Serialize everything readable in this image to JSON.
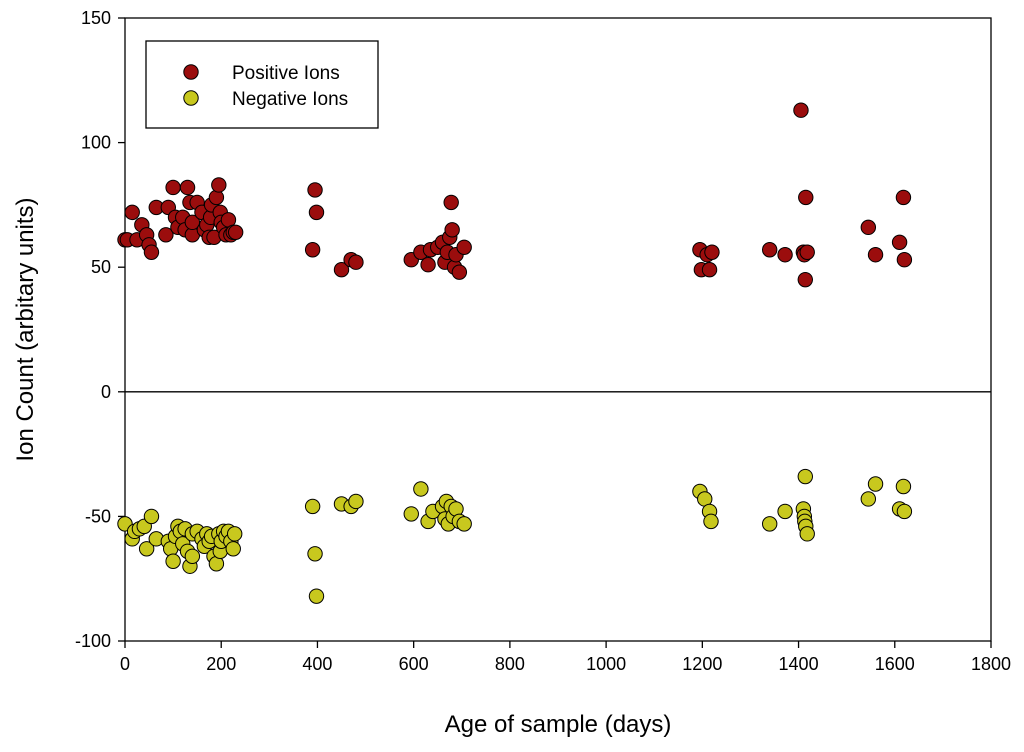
{
  "chart_data": {
    "type": "scatter",
    "title": "",
    "xlabel": "Age of sample (days)",
    "ylabel": "Ion Count (arbitary units)",
    "xlim": [
      0,
      1800
    ],
    "ylim": [
      -100,
      150
    ],
    "xticks": [
      0,
      200,
      400,
      600,
      800,
      1000,
      1200,
      1400,
      1600,
      1800
    ],
    "yticks": [
      -100,
      -50,
      0,
      50,
      100,
      150
    ],
    "zero_line": 0,
    "grid": false,
    "legend_position": "top-left",
    "series": [
      {
        "name": "Positive Ions",
        "color": "#9b0d0d",
        "points": [
          [
            0,
            61
          ],
          [
            5,
            61
          ],
          [
            15,
            72
          ],
          [
            25,
            61
          ],
          [
            35,
            67
          ],
          [
            45,
            63
          ],
          [
            50,
            59
          ],
          [
            55,
            56
          ],
          [
            65,
            74
          ],
          [
            85,
            63
          ],
          [
            90,
            74
          ],
          [
            100,
            82
          ],
          [
            105,
            70
          ],
          [
            110,
            66
          ],
          [
            120,
            70
          ],
          [
            125,
            65
          ],
          [
            130,
            82
          ],
          [
            135,
            76
          ],
          [
            140,
            63
          ],
          [
            140,
            68
          ],
          [
            150,
            76
          ],
          [
            160,
            72
          ],
          [
            165,
            65
          ],
          [
            170,
            67
          ],
          [
            175,
            62
          ],
          [
            178,
            70
          ],
          [
            180,
            75
          ],
          [
            185,
            62
          ],
          [
            190,
            78
          ],
          [
            195,
            83
          ],
          [
            198,
            72
          ],
          [
            200,
            68
          ],
          [
            205,
            66
          ],
          [
            210,
            63
          ],
          [
            215,
            69
          ],
          [
            220,
            63
          ],
          [
            225,
            64
          ],
          [
            230,
            64
          ],
          [
            390,
            57
          ],
          [
            395,
            81
          ],
          [
            398,
            72
          ],
          [
            450,
            49
          ],
          [
            470,
            53
          ],
          [
            480,
            52
          ],
          [
            595,
            53
          ],
          [
            615,
            56
          ],
          [
            630,
            51
          ],
          [
            635,
            57
          ],
          [
            650,
            58
          ],
          [
            660,
            60
          ],
          [
            665,
            52
          ],
          [
            670,
            56
          ],
          [
            675,
            62
          ],
          [
            678,
            76
          ],
          [
            680,
            65
          ],
          [
            685,
            50
          ],
          [
            688,
            55
          ],
          [
            695,
            48
          ],
          [
            705,
            58
          ],
          [
            1195,
            57
          ],
          [
            1198,
            49
          ],
          [
            1210,
            55
          ],
          [
            1215,
            49
          ],
          [
            1220,
            56
          ],
          [
            1340,
            57
          ],
          [
            1372,
            55
          ],
          [
            1405,
            113
          ],
          [
            1410,
            56
          ],
          [
            1412,
            55
          ],
          [
            1414,
            45
          ],
          [
            1415,
            78
          ],
          [
            1418,
            56
          ],
          [
            1545,
            66
          ],
          [
            1560,
            55
          ],
          [
            1610,
            60
          ],
          [
            1618,
            78
          ],
          [
            1620,
            53
          ]
        ]
      },
      {
        "name": "Negative Ions",
        "color": "#c8c81e",
        "points": [
          [
            0,
            -53
          ],
          [
            15,
            -59
          ],
          [
            20,
            -56
          ],
          [
            30,
            -55
          ],
          [
            40,
            -54
          ],
          [
            45,
            -63
          ],
          [
            55,
            -50
          ],
          [
            65,
            -59
          ],
          [
            90,
            -60
          ],
          [
            95,
            -63
          ],
          [
            100,
            -68
          ],
          [
            105,
            -58
          ],
          [
            110,
            -54
          ],
          [
            115,
            -56
          ],
          [
            120,
            -61
          ],
          [
            125,
            -55
          ],
          [
            130,
            -64
          ],
          [
            135,
            -70
          ],
          [
            140,
            -57
          ],
          [
            140,
            -66
          ],
          [
            150,
            -56
          ],
          [
            160,
            -59
          ],
          [
            165,
            -62
          ],
          [
            170,
            -57
          ],
          [
            175,
            -60
          ],
          [
            180,
            -58
          ],
          [
            185,
            -66
          ],
          [
            190,
            -69
          ],
          [
            195,
            -57
          ],
          [
            198,
            -64
          ],
          [
            200,
            -60
          ],
          [
            205,
            -56
          ],
          [
            210,
            -58
          ],
          [
            215,
            -56
          ],
          [
            220,
            -60
          ],
          [
            225,
            -63
          ],
          [
            228,
            -57
          ],
          [
            390,
            -46
          ],
          [
            395,
            -65
          ],
          [
            398,
            -82
          ],
          [
            450,
            -45
          ],
          [
            470,
            -46
          ],
          [
            480,
            -44
          ],
          [
            595,
            -49
          ],
          [
            615,
            -39
          ],
          [
            630,
            -52
          ],
          [
            640,
            -48
          ],
          [
            660,
            -46
          ],
          [
            665,
            -51
          ],
          [
            668,
            -44
          ],
          [
            672,
            -53
          ],
          [
            678,
            -46
          ],
          [
            682,
            -50
          ],
          [
            688,
            -47
          ],
          [
            695,
            -52
          ],
          [
            705,
            -53
          ],
          [
            1195,
            -40
          ],
          [
            1205,
            -43
          ],
          [
            1215,
            -48
          ],
          [
            1218,
            -52
          ],
          [
            1340,
            -53
          ],
          [
            1372,
            -48
          ],
          [
            1410,
            -47
          ],
          [
            1412,
            -50
          ],
          [
            1413,
            -52
          ],
          [
            1414,
            -34
          ],
          [
            1415,
            -54
          ],
          [
            1418,
            -57
          ],
          [
            1545,
            -43
          ],
          [
            1560,
            -37
          ],
          [
            1610,
            -47
          ],
          [
            1618,
            -38
          ],
          [
            1620,
            -48
          ]
        ]
      }
    ]
  }
}
